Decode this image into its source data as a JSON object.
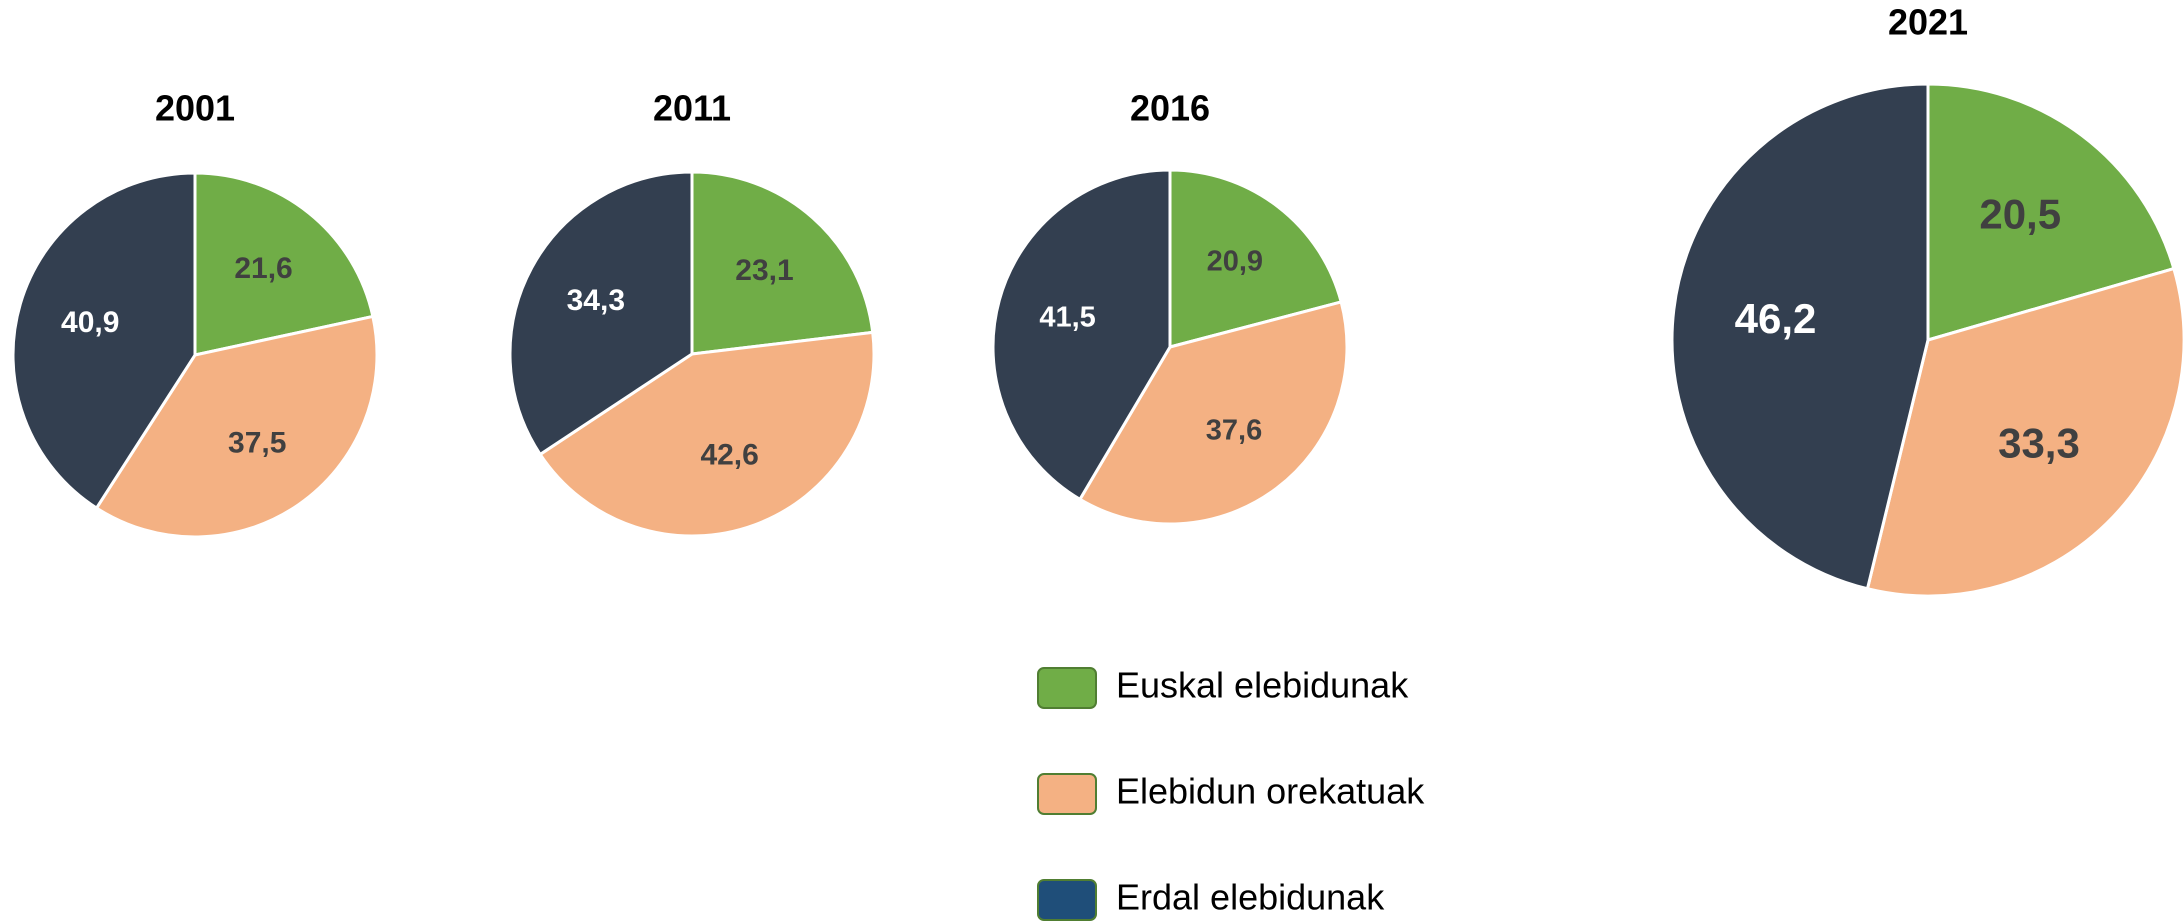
{
  "chart_data": [
    {
      "type": "pie",
      "title": "2001",
      "values": [
        21.6,
        37.5,
        40.9
      ],
      "value_labels": [
        "21,6",
        "37,5",
        "40,9"
      ],
      "colors": [
        "#70ad47",
        "#f4b183",
        "#333f50"
      ]
    },
    {
      "type": "pie",
      "title": "2011",
      "values": [
        23.1,
        42.6,
        34.3
      ],
      "value_labels": [
        "23,1",
        "42,6",
        "34,3"
      ],
      "colors": [
        "#70ad47",
        "#f4b183",
        "#333f50"
      ]
    },
    {
      "type": "pie",
      "title": "2016",
      "values": [
        20.9,
        37.6,
        41.5
      ],
      "value_labels": [
        "20,9",
        "37,6",
        "41,5"
      ],
      "colors": [
        "#70ad47",
        "#f4b183",
        "#333f50"
      ]
    },
    {
      "type": "pie",
      "title": "2021",
      "values": [
        20.5,
        33.3,
        46.2
      ],
      "value_labels": [
        "20,5",
        "33,3",
        "46,2"
      ],
      "colors": [
        "#70ad47",
        "#f4b183",
        "#333f50"
      ]
    }
  ],
  "label_colors": [
    "#404040",
    "#404040",
    "#ffffff"
  ],
  "legend": {
    "labels": [
      "Euskal elebidunak",
      "Elebidun orekatuak",
      "Erdal elebidunak"
    ],
    "colors": [
      "#70ad47",
      "#f4b183",
      "#1f4e79"
    ]
  }
}
